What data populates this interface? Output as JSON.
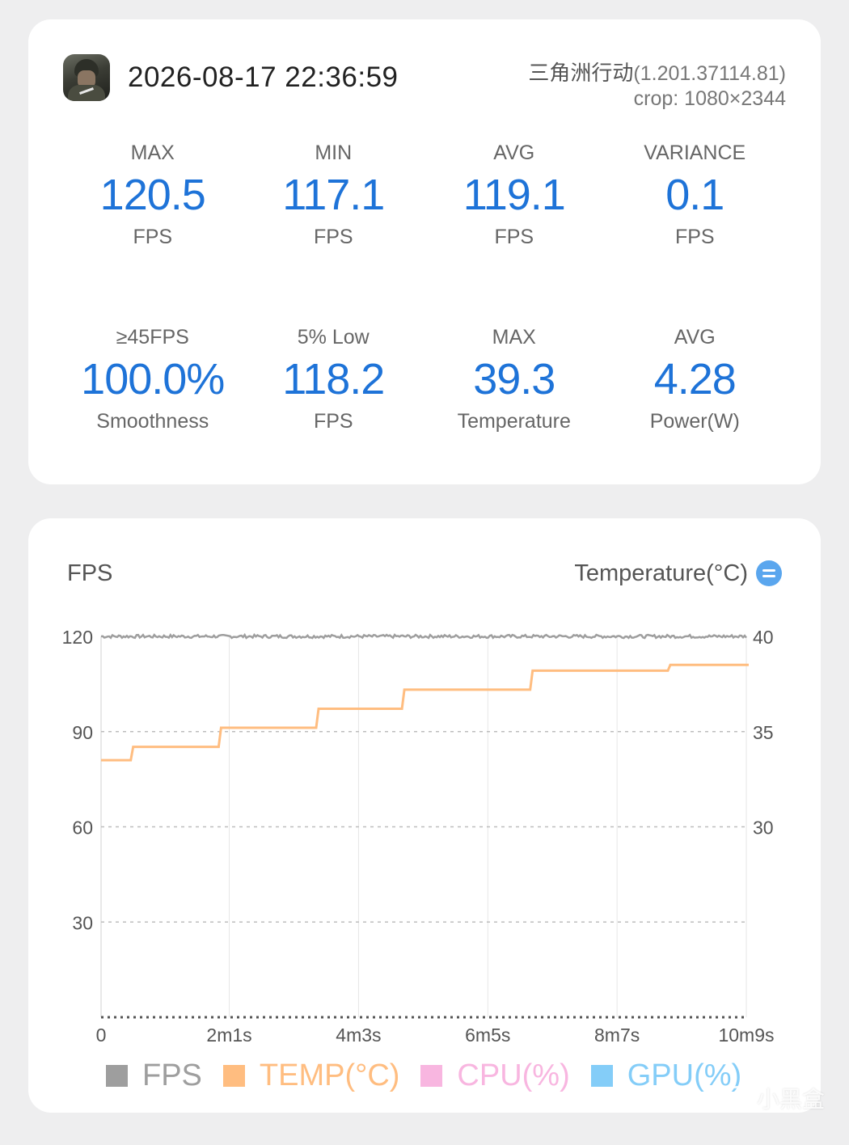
{
  "header": {
    "app_icon": "game-soldier-icon",
    "datetime": "2026-08-17 22:36:59",
    "game_name": "三角洲行动",
    "game_version": "(1.201.37114.81)",
    "crop": "crop: 1080×2344"
  },
  "stats": [
    {
      "label": "MAX",
      "value": "120.5",
      "unit": "FPS"
    },
    {
      "label": "MIN",
      "value": "117.1",
      "unit": "FPS"
    },
    {
      "label": "AVG",
      "value": "119.1",
      "unit": "FPS"
    },
    {
      "label": "VARIANCE",
      "value": "0.1",
      "unit": "FPS"
    },
    {
      "label": "≥45FPS",
      "value": "100.0%",
      "unit": "Smoothness"
    },
    {
      "label": "5% Low",
      "value": "118.2",
      "unit": "FPS"
    },
    {
      "label": "MAX",
      "value": "39.3",
      "unit": "Temperature"
    },
    {
      "label": "AVG",
      "value": "4.28",
      "unit": "Power(W)"
    }
  ],
  "chart": {
    "left_title": "FPS",
    "right_title": "Temperature(°C)",
    "switch_icon": "swap-axis-icon"
  },
  "legend": [
    {
      "label": "FPS",
      "color": "#9e9e9e"
    },
    {
      "label": "TEMP(°C)",
      "color": "#ffbd80"
    },
    {
      "label": "CPU(%)",
      "color": "#f8b6e0"
    },
    {
      "label": "GPU(%)",
      "color": "#84cdf8"
    }
  ],
  "watermark": "小黑盒",
  "chart_data": {
    "type": "line",
    "xlabel": "",
    "ylabel": "FPS",
    "y2label": "Temperature(°C)",
    "x_ticks": [
      "0",
      "2m1s",
      "4m3s",
      "6m5s",
      "8m7s",
      "10m9s"
    ],
    "x_tick_seconds": [
      0,
      121,
      243,
      365,
      487,
      609
    ],
    "y_ticks": [
      30,
      60,
      90,
      120
    ],
    "ylim": [
      0,
      120
    ],
    "y2_ticks": [
      30,
      35,
      40
    ],
    "y2lim": [
      20,
      40
    ],
    "grid": true,
    "legend_position": "bottom",
    "series": [
      {
        "name": "FPS",
        "axis": "left",
        "x": [
          0,
          30,
          60,
          90,
          120,
          150,
          180,
          210,
          240,
          270,
          300,
          330,
          360,
          390,
          420,
          450,
          480,
          510,
          540,
          570,
          609
        ],
        "values": [
          120,
          120,
          120,
          120,
          120,
          120,
          120,
          120,
          120,
          120,
          120,
          120,
          120,
          120,
          120,
          120,
          120,
          120,
          120,
          120,
          120
        ]
      },
      {
        "name": "TEMP(°C)",
        "axis": "right",
        "x": [
          0,
          28,
          111,
          203,
          284,
          405,
          535,
          609
        ],
        "values": [
          33.5,
          34.2,
          35.2,
          36.2,
          37.2,
          38.2,
          38.5,
          38.5
        ]
      }
    ]
  }
}
